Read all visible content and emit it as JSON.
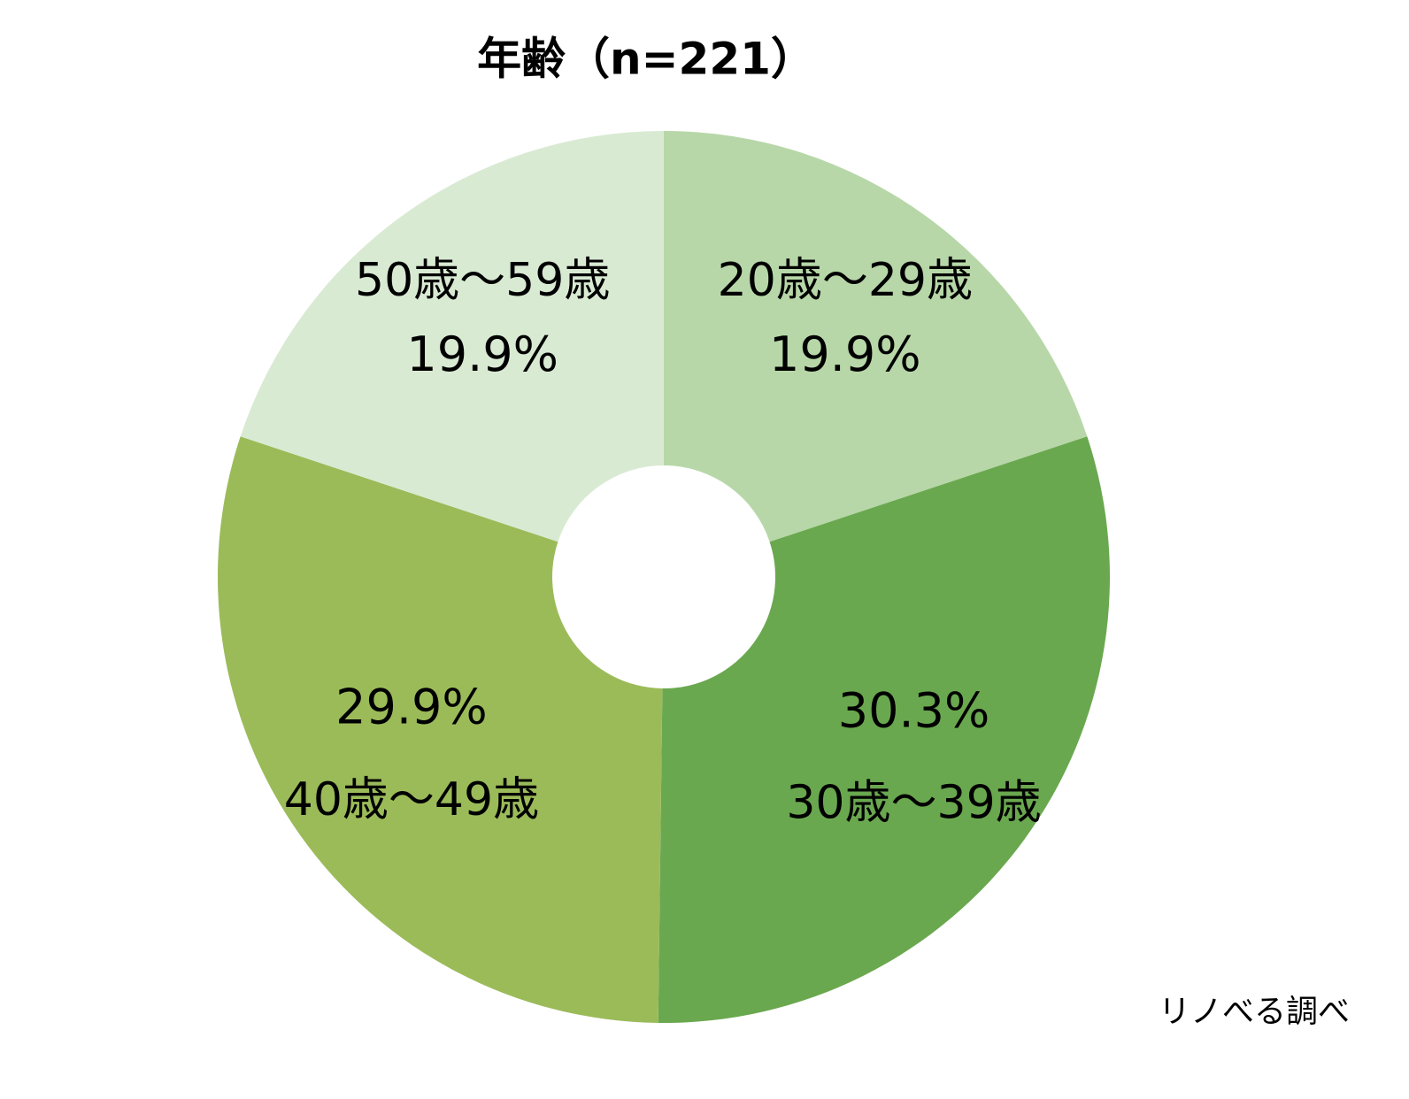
{
  "chart_data": {
    "type": "pie",
    "title": "年齢（n=221）",
    "categories": [
      "20歳～29歳",
      "30歳～39歳",
      "40歳～49歳",
      "50歳～59歳"
    ],
    "values": [
      19.9,
      30.3,
      29.9,
      19.9
    ],
    "value_labels": [
      "19.9%",
      "30.3%",
      "29.9%",
      "19.9%"
    ],
    "colors": [
      "#b7d7a8",
      "#6aa84f",
      "#9bbb59",
      "#d9ead3"
    ],
    "source": "リノべる調べ"
  }
}
